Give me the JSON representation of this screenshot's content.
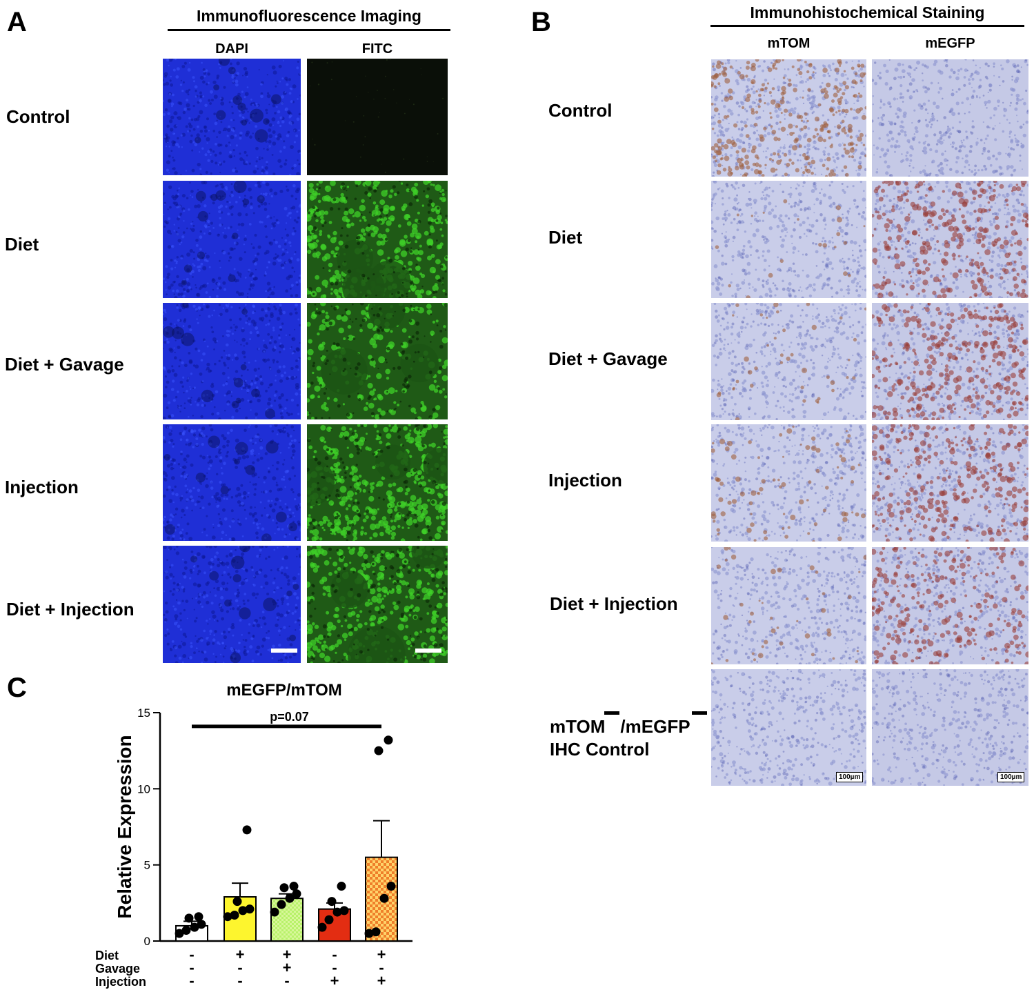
{
  "panel_a": {
    "letter": "A",
    "title": "Immunofluorescence Imaging",
    "columns": [
      "DAPI",
      "FITC"
    ],
    "rows": [
      "Control",
      "Diet",
      "Diet + Gavage",
      "Injection",
      "Diet + Injection"
    ]
  },
  "panel_b": {
    "letter": "B",
    "title": "Immunohistochemical Staining",
    "columns": [
      "mTOM",
      "mEGFP"
    ],
    "rows": [
      "Control",
      "Diet",
      "Diet + Gavage",
      "Injection",
      "Diet + Injection"
    ],
    "control_row": {
      "line1_a": "mTOM",
      "line1_b": "/mEGFP",
      "line2": "IHC Control"
    },
    "scale_label": "100µm"
  },
  "panel_c": {
    "letter": "C",
    "chart_data": {
      "type": "bar",
      "title": "mEGFP/mTOM",
      "ylabel": "Relative Expression",
      "xlabel": "",
      "ylim": [
        0,
        15
      ],
      "yticks": [
        0,
        5,
        10,
        15
      ],
      "categories": [
        "Control",
        "Diet",
        "Diet + Gavage",
        "Injection",
        "Diet + Injection"
      ],
      "values": [
        1.0,
        2.9,
        2.8,
        2.1,
        5.5
      ],
      "sem_upper": [
        1.3,
        3.8,
        3.1,
        2.5,
        7.9
      ],
      "colors": [
        "#ffffff",
        "#fdf52e",
        "#b8f26a",
        "#e32d12",
        "#ef7f2a"
      ],
      "points": [
        [
          0.5,
          0.7,
          0.9,
          1.1,
          1.5,
          1.6
        ],
        [
          1.6,
          1.7,
          2.0,
          2.1,
          2.6,
          7.3
        ],
        [
          1.9,
          2.4,
          2.8,
          3.1,
          3.5,
          3.6
        ],
        [
          0.9,
          1.4,
          1.9,
          2.0,
          2.6,
          3.6
        ],
        [
          0.5,
          0.6,
          2.8,
          3.6,
          12.5,
          13.2
        ]
      ],
      "significance": {
        "label": "p=0.07",
        "from": 0,
        "to": 4,
        "y": 14.1
      },
      "condition_rows": [
        {
          "label": "Diet",
          "signs": [
            "-",
            "+",
            "+",
            "-",
            "+"
          ]
        },
        {
          "label": "Gavage",
          "signs": [
            "-",
            "-",
            "+",
            "-",
            "-"
          ]
        },
        {
          "label": "Injection",
          "signs": [
            "-",
            "-",
            "-",
            "+",
            "+"
          ]
        }
      ],
      "grid": false,
      "legend": "none"
    }
  },
  "tile_colors": {
    "dapi": "#1f2fd6",
    "fitc_bright": "#3fd028",
    "fitc_dark": "#0a0f08",
    "ihc_blue": "#8a93cf",
    "ihc_brown": "#a0603f"
  }
}
